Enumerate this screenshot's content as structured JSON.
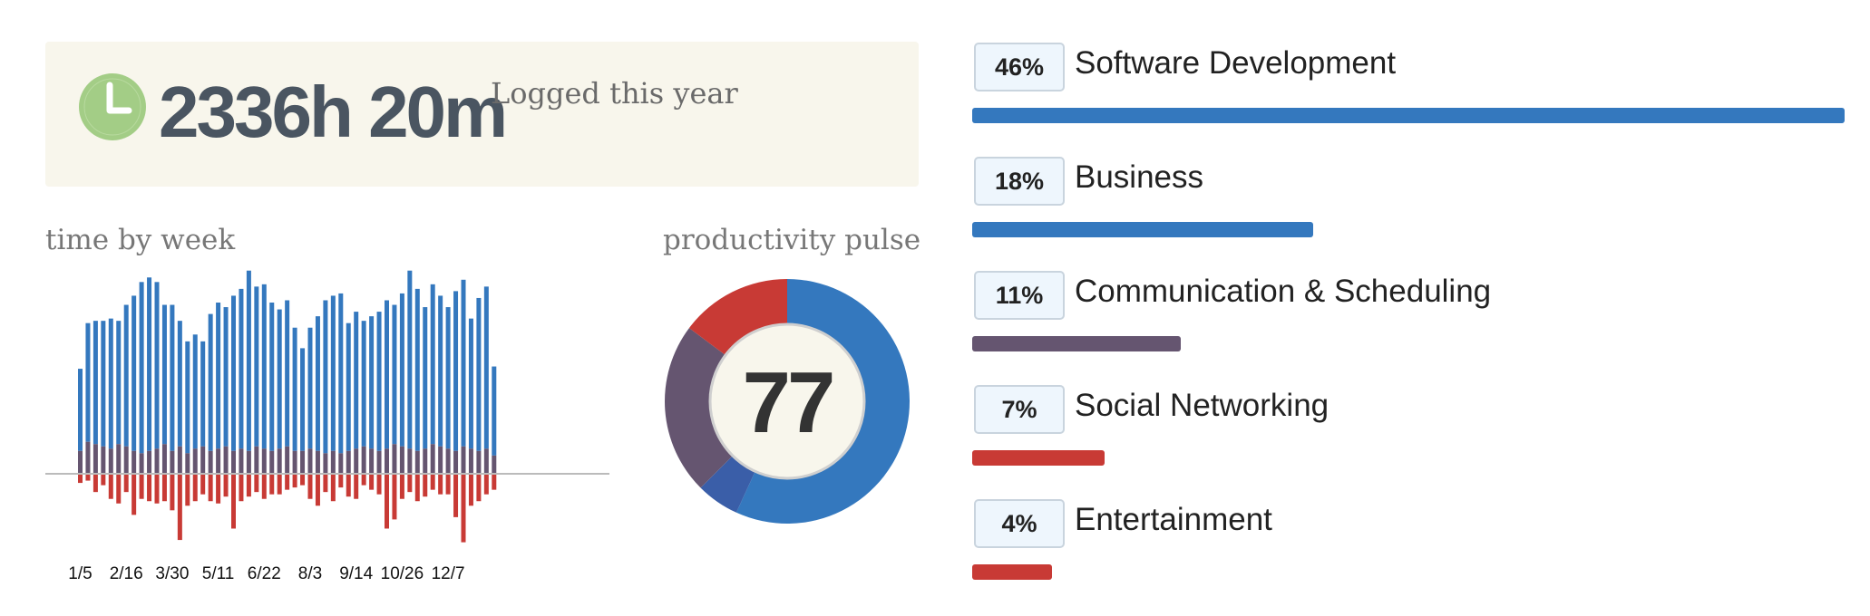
{
  "summary": {
    "total_time": "2336h 20m",
    "caption": "Logged this year",
    "icon": "clock-icon"
  },
  "colors": {
    "productive": "#3478be",
    "very_productive": "#3a5ea8",
    "neutral": "#655570",
    "distracting": "#c83a35",
    "card_background": "#f8f6ec",
    "clock_green": "#a3cd86"
  },
  "chart_data": [
    {
      "type": "bar",
      "title": "time by week",
      "x_tick_labels": [
        "1/5",
        "2/16",
        "3/30",
        "5/11",
        "6/22",
        "8/3",
        "9/14",
        "10/26",
        "12/7"
      ],
      "x_tick_every": 6,
      "stacked": true,
      "series": [
        {
          "key": "productive",
          "values": [
            36,
            52,
            54,
            55,
            57,
            54,
            62,
            68,
            75,
            76,
            73,
            61,
            64,
            55,
            49,
            50,
            46,
            60,
            64,
            61,
            68,
            70,
            79,
            70,
            72,
            65,
            61,
            64,
            54,
            45,
            53,
            59,
            67,
            68,
            70,
            56,
            60,
            55,
            58,
            61,
            65,
            61,
            67,
            78,
            71,
            62,
            70,
            66,
            62,
            70,
            73,
            57,
            67,
            71,
            39
          ]
        },
        {
          "key": "neutral",
          "values": [
            10,
            14,
            13,
            12,
            11,
            13,
            12,
            10,
            9,
            10,
            11,
            13,
            10,
            12,
            9,
            11,
            12,
            10,
            11,
            12,
            10,
            11,
            10,
            12,
            11,
            10,
            11,
            12,
            10,
            10,
            11,
            10,
            9,
            10,
            9,
            10,
            11,
            12,
            11,
            10,
            11,
            13,
            12,
            11,
            10,
            11,
            13,
            12,
            11,
            10,
            12,
            11,
            10,
            11,
            8
          ]
        },
        {
          "key": "distracting",
          "values": [
            4,
            3,
            8,
            5,
            11,
            13,
            8,
            18,
            11,
            12,
            13,
            12,
            16,
            29,
            14,
            12,
            9,
            12,
            13,
            10,
            24,
            12,
            10,
            8,
            11,
            9,
            9,
            7,
            6,
            5,
            11,
            14,
            8,
            12,
            6,
            10,
            11,
            5,
            7,
            9,
            24,
            20,
            11,
            8,
            12,
            10,
            7,
            9,
            9,
            19,
            30,
            14,
            12,
            9,
            7
          ]
        }
      ]
    },
    {
      "type": "pie",
      "title": "productivity pulse",
      "center_value": "77",
      "donut": true,
      "slices": [
        {
          "key": "productive",
          "value": 50
        },
        {
          "key": "very_productive",
          "value": 5
        },
        {
          "key": "neutral",
          "value": 20
        },
        {
          "key": "distracting",
          "value": 13
        }
      ]
    },
    {
      "type": "bar",
      "orientation": "horizontal",
      "categories": [
        "Software Development",
        "Business",
        "Communication & Scheduling",
        "Social Networking",
        "Entertainment"
      ],
      "values": [
        46,
        18,
        11,
        7,
        4
      ],
      "labels": [
        "46%",
        "18%",
        "11%",
        "7%",
        "4%"
      ],
      "colors": [
        "#3478be",
        "#3478be",
        "#655570",
        "#c83a35",
        "#c83a35"
      ]
    }
  ]
}
